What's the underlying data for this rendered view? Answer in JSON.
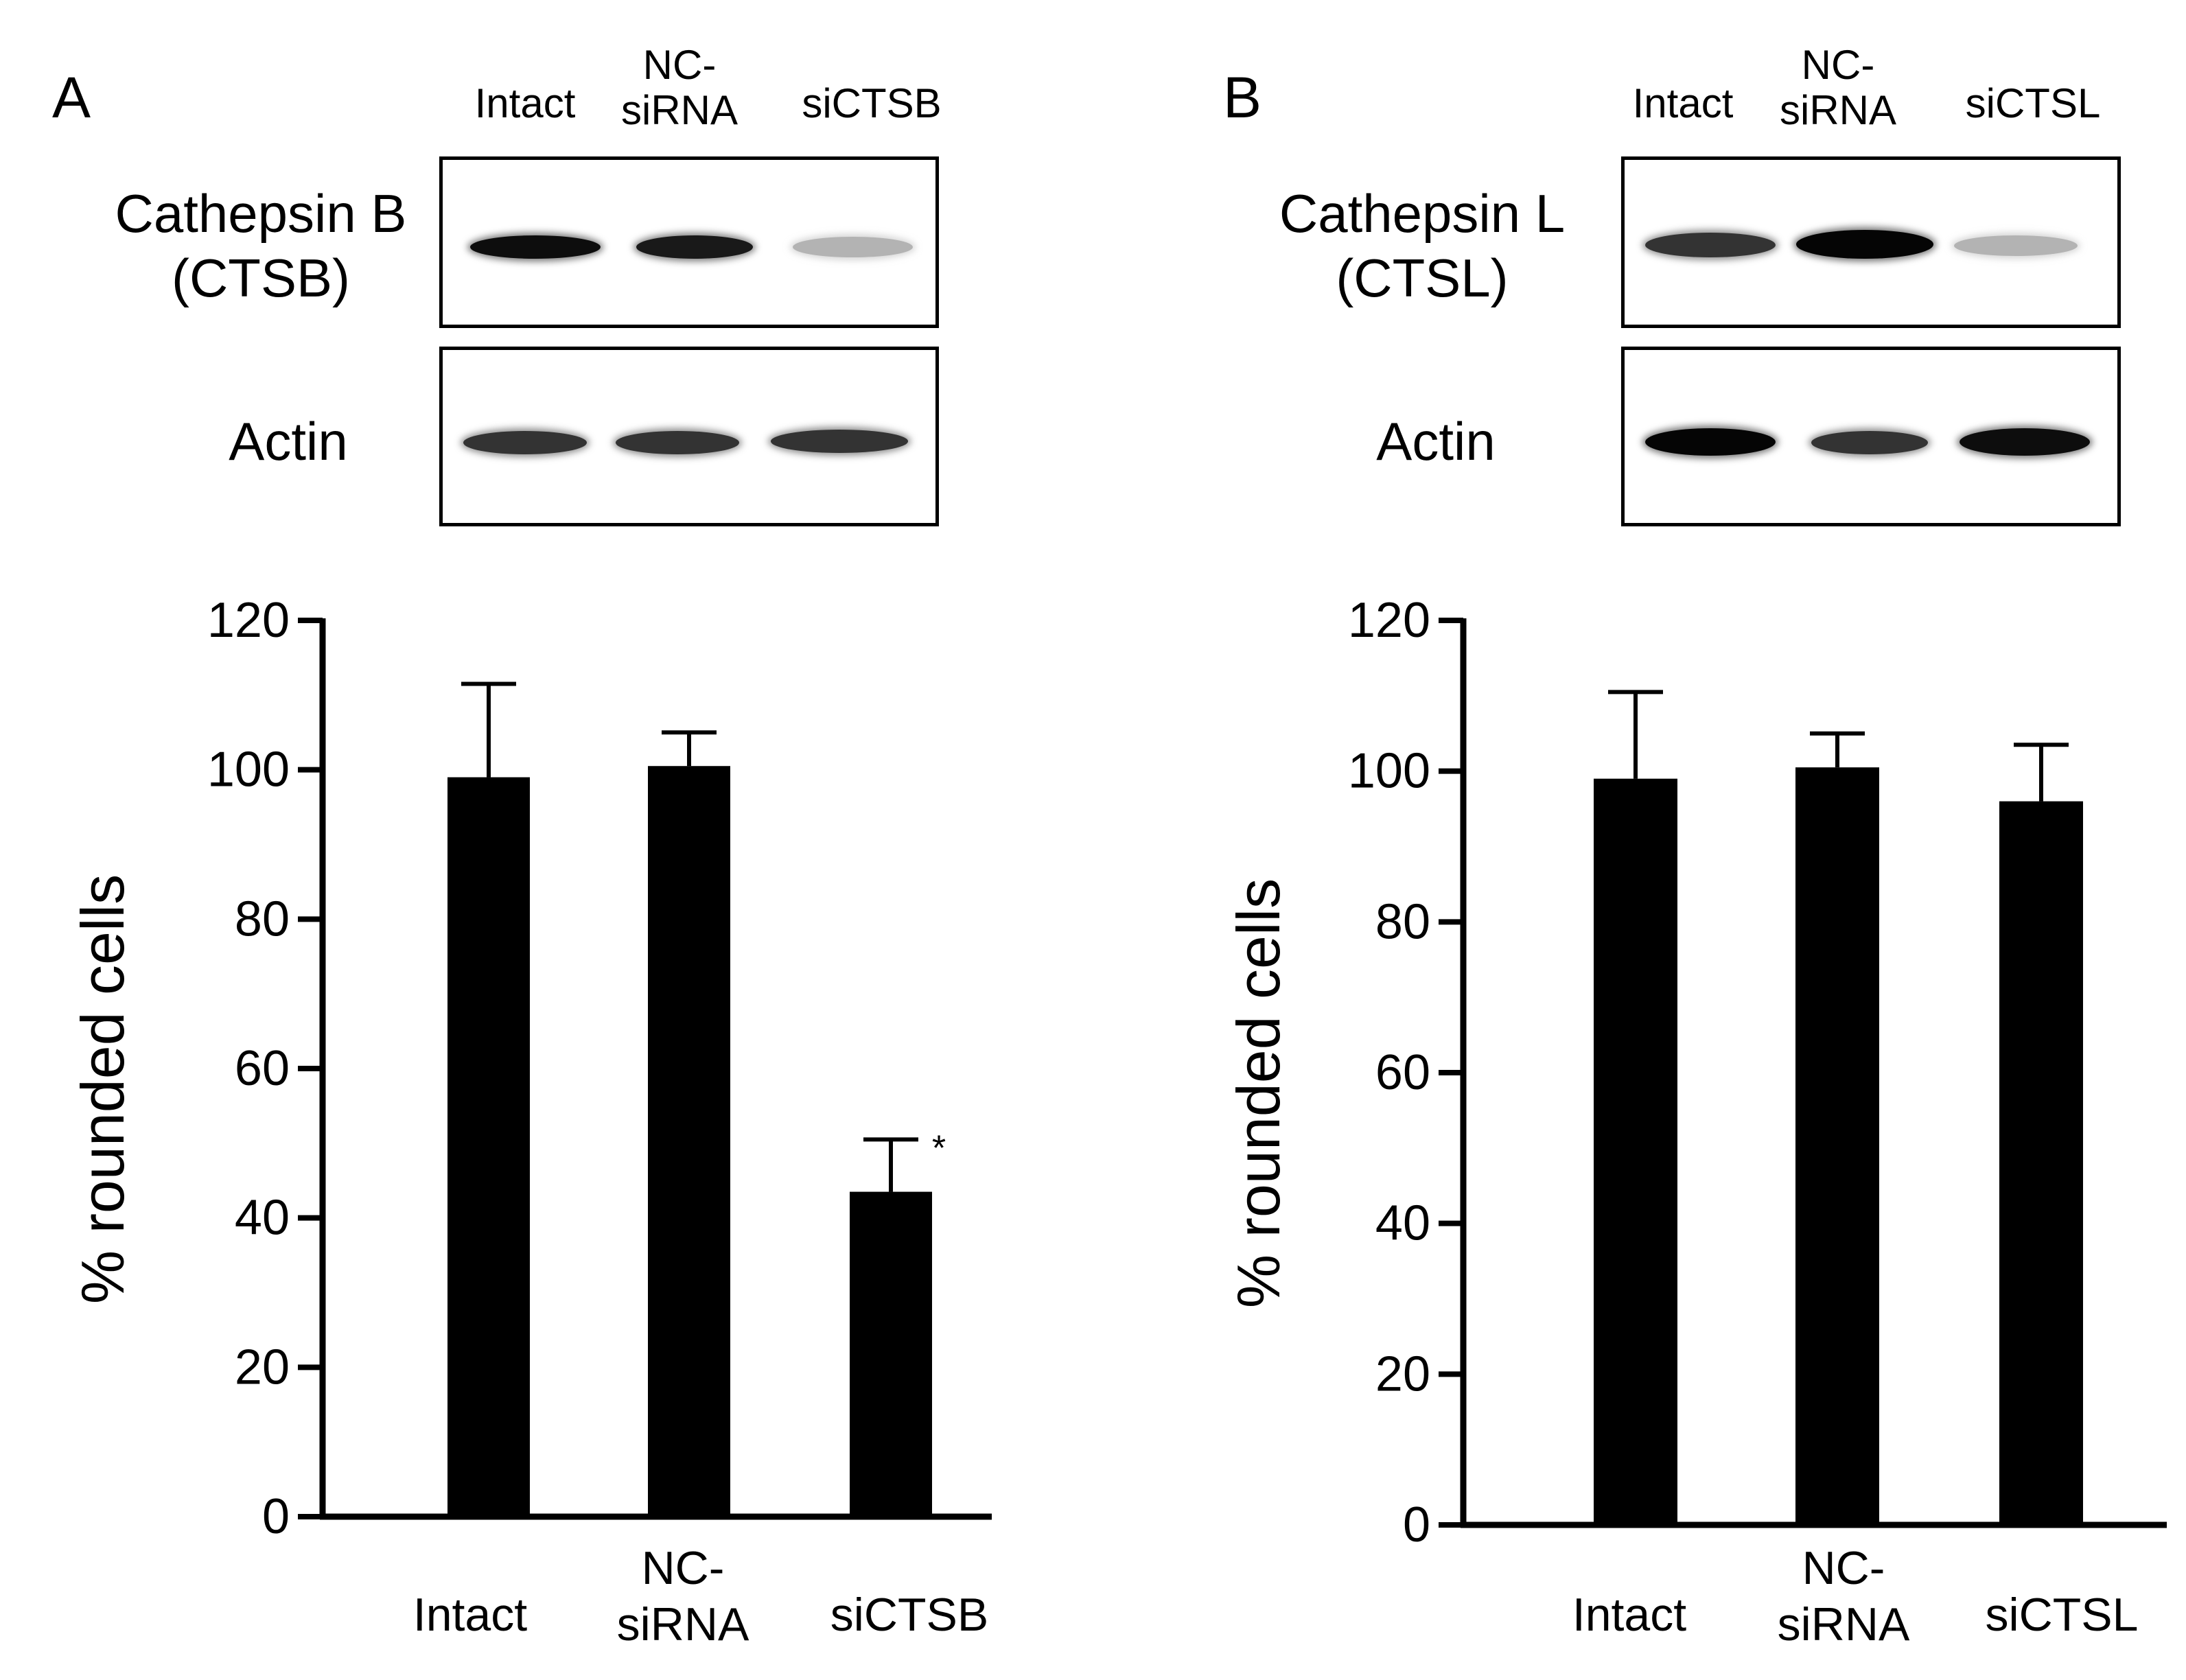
{
  "panels": [
    {
      "letter": "A",
      "lanes": [
        "Intact",
        "NC-\nsiRNA",
        "siCTSB"
      ],
      "blots": [
        {
          "label": "Cathepsin B\n(CTSB)",
          "band_intensity": [
            0.95,
            0.9,
            0.3
          ]
        },
        {
          "label": "Actin",
          "band_intensity": [
            0.8,
            0.8,
            0.8
          ]
        }
      ]
    },
    {
      "letter": "B",
      "lanes": [
        "Intact",
        "NC-\nsiRNA",
        "siCTSL"
      ],
      "blots": [
        {
          "label": "Cathepsin L\n(CTSL)",
          "band_intensity": [
            0.8,
            0.98,
            0.3
          ]
        },
        {
          "label": "Actin",
          "band_intensity": [
            0.98,
            0.8,
            0.95
          ]
        }
      ]
    }
  ],
  "chart_data": [
    {
      "type": "bar",
      "categories": [
        "Intact",
        "NC-\nsiRNA",
        "siCTSB"
      ],
      "values": [
        99,
        100.5,
        43.5
      ],
      "error_upper": [
        111.5,
        105,
        50.5
      ],
      "annotations": [
        "",
        "",
        "*"
      ],
      "ylabel": "% rounded cells",
      "yticks": [
        0,
        20,
        40,
        60,
        80,
        100,
        120
      ],
      "ylim": [
        0,
        120
      ],
      "color": "#000000"
    },
    {
      "type": "bar",
      "categories": [
        "Intact",
        "NC-\nsiRNA",
        "siCTSL"
      ],
      "values": [
        99,
        100.5,
        96
      ],
      "error_upper": [
        110.5,
        105,
        103.5
      ],
      "annotations": [
        "",
        "",
        ""
      ],
      "ylabel": "% rounded cells",
      "yticks": [
        0,
        20,
        40,
        60,
        80,
        100,
        120
      ],
      "ylim": [
        0,
        120
      ],
      "color": "#000000"
    }
  ]
}
